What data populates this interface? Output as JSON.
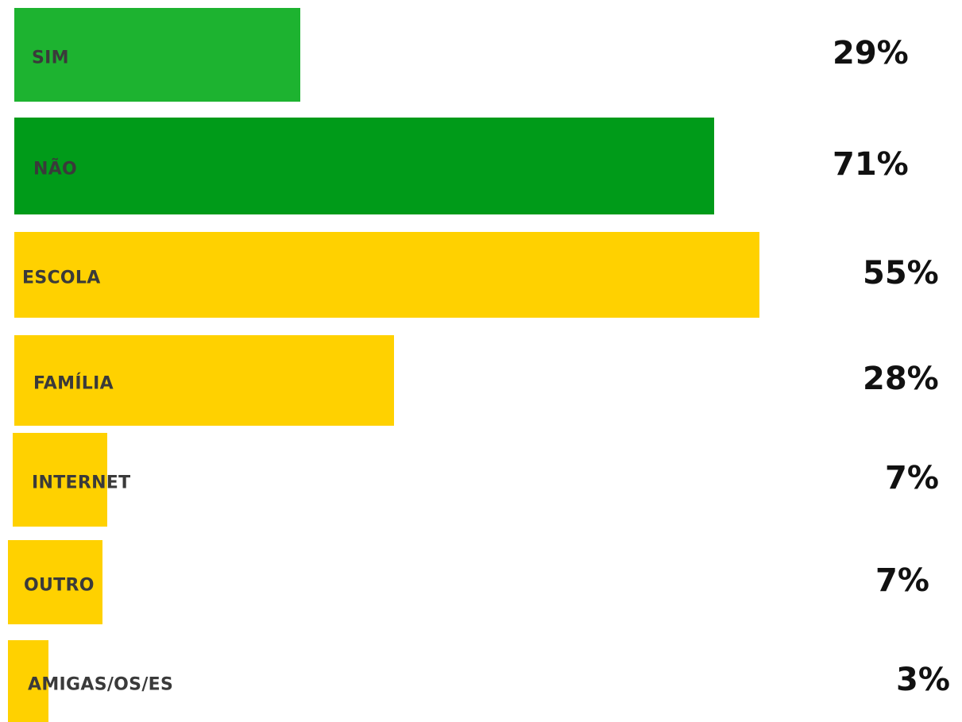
{
  "colors": {
    "green_light": "#1db330",
    "green_dark": "#009b19",
    "yellow": "#ffd100"
  },
  "chart_data": {
    "type": "bar",
    "orientation": "horizontal",
    "unit": "%",
    "categories": [
      "SIM",
      "NÃO",
      "ESCOLA",
      "FAMÍLIA",
      "INTERNET",
      "OUTRO",
      "AMIGAS/OS/ES"
    ],
    "values": [
      29,
      71,
      55,
      28,
      7,
      7,
      3
    ],
    "value_labels": [
      "29%",
      "71%",
      "55%",
      "28%",
      "7%",
      "7%",
      "3%"
    ],
    "bar_colors": [
      "#1db330",
      "#009b19",
      "#ffd100",
      "#ffd100",
      "#ffd100",
      "#ffd100",
      "#ffd100"
    ],
    "title": "",
    "xlabel": "",
    "ylabel": "",
    "grid": false,
    "legend": "none"
  }
}
